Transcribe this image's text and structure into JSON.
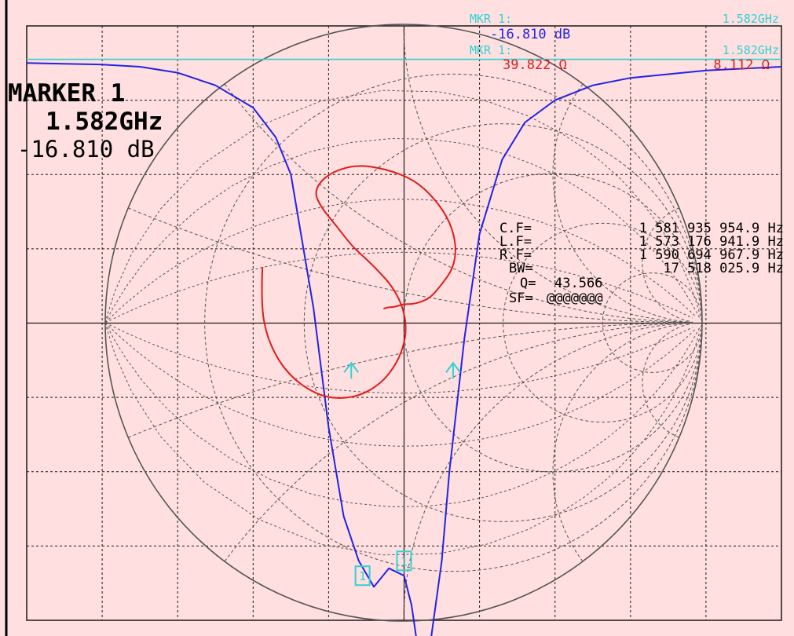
{
  "colors": {
    "background": "#ffdfdf",
    "grid": "#1a1a1a",
    "smith_grid": "#555555",
    "trace_logmag": "#2323e6",
    "trace_smith": "#e01b1b",
    "marker": "#2fd3d3",
    "readout": "#000000"
  },
  "header": {
    "mkr1_label_a": "MKR 1:",
    "mkr1_freq_a": "1.582GHz",
    "mkr1_value_a": "-16.810 dB",
    "mkr1_label_b": "MKR 1:",
    "mkr1_freq_b": "1.582GHz",
    "mkr1_resistance": "39.822 Ω",
    "mkr1_reactance": "8.112 Ω"
  },
  "marker_box": {
    "title": "MARKER 1",
    "frequency": "1.582GHz",
    "value": "-16.810 dB"
  },
  "bandwidth_readout": {
    "rows": [
      {
        "label": "C.F=",
        "value": "1 581 935 954.9 Hz"
      },
      {
        "label": "L.F=",
        "value": "1 573 176 941.9 Hz"
      },
      {
        "label": "R.F=",
        "value": "1 590 694 967.9 Hz"
      },
      {
        "label": "BW=",
        "value": "17 518 025.9 Hz"
      },
      {
        "label": "Q=",
        "value": "43.566"
      },
      {
        "label": "SF=",
        "value": "@@@@@@@"
      }
    ]
  },
  "chart_data": {
    "type": "line",
    "grid": true,
    "grid_divisions": {
      "x": 10,
      "y": 8
    },
    "smith_chart": {
      "resistance_circles": [
        0.2,
        0.5,
        1,
        2,
        5
      ],
      "reactance_arcs": [
        0.2,
        0.5,
        1,
        2,
        5
      ],
      "constant_q_lines": [
        0.5,
        1,
        2,
        4
      ]
    },
    "series": [
      {
        "name": "",
        "kind": "log-magnitude",
        "color": "#2323e6",
        "x": [
          0,
          0.5,
          1.0,
          1.5,
          2.0,
          2.5,
          3.0,
          3.3,
          3.5,
          3.6,
          3.8,
          4.0,
          4.2,
          4.4,
          4.6,
          4.8,
          5.0,
          5.1,
          5.2,
          5.35,
          5.5,
          5.6,
          5.8,
          6.0,
          6.3,
          6.6,
          7.0,
          7.5,
          8.0,
          9.0,
          10.0
        ],
        "y": [
          -0.5,
          -0.51,
          -0.52,
          -0.55,
          -0.63,
          -0.8,
          -1.1,
          -1.5,
          -2.0,
          -2.6,
          -3.8,
          -5.4,
          -6.6,
          -7.2,
          -7.55,
          -7.3,
          -7.4,
          -7.8,
          -8.5,
          -8.3,
          -7.2,
          -6.0,
          -4.2,
          -2.8,
          -1.8,
          -1.3,
          -1.0,
          -0.8,
          -0.7,
          -0.6,
          -0.55
        ]
      },
      {
        "name": "",
        "kind": "impedance-smith",
        "color": "#e01b1b",
        "gamma": [
          [
            -0.91,
            0.36
          ],
          [
            -0.92,
            0.12
          ],
          [
            -0.88,
            -0.1
          ],
          [
            -0.78,
            -0.29
          ],
          [
            -0.64,
            -0.42
          ],
          [
            -0.48,
            -0.49
          ],
          [
            -0.3,
            -0.48
          ],
          [
            -0.14,
            -0.39
          ],
          [
            -0.03,
            -0.24
          ],
          [
            0.02,
            -0.07
          ],
          [
            0.0,
            0.09
          ],
          [
            -0.07,
            0.23
          ],
          [
            -0.16,
            0.33
          ],
          [
            -0.24,
            0.41
          ],
          [
            -0.33,
            0.49
          ],
          [
            -0.43,
            0.62
          ],
          [
            -0.53,
            0.74
          ],
          [
            -0.58,
            0.85
          ],
          [
            -0.49,
            0.96
          ],
          [
            -0.31,
            1.02
          ],
          [
            -0.11,
            0.99
          ],
          [
            0.07,
            0.92
          ],
          [
            0.2,
            0.8
          ],
          [
            0.3,
            0.65
          ],
          [
            0.34,
            0.49
          ],
          [
            0.32,
            0.35
          ],
          [
            0.24,
            0.24
          ],
          [
            0.18,
            0.17
          ],
          [
            0.13,
            0.14
          ],
          [
            0.06,
            0.12
          ],
          [
            0.0,
            0.12
          ],
          [
            -0.03,
            0.11
          ],
          [
            -0.07,
            0.1
          ],
          [
            -0.1,
            0.1
          ],
          [
            -0.13,
            0.09
          ]
        ]
      }
    ],
    "markers": [
      {
        "id": "1",
        "trace": "log-magnitude",
        "x": 4.45,
        "y": -7.4,
        "type": "active"
      },
      {
        "id": "1",
        "trace": "impedance-smith",
        "x": 5.0,
        "y": -7.2,
        "type": "active"
      },
      {
        "id": "L",
        "trace": "log-magnitude",
        "x": 4.3,
        "y": -4.6,
        "type": "bandwidth-left"
      },
      {
        "id": "R",
        "trace": "log-magnitude",
        "x": 5.65,
        "y": -4.6,
        "type": "bandwidth-right"
      }
    ],
    "reference_line": {
      "y": -0.45
    }
  }
}
